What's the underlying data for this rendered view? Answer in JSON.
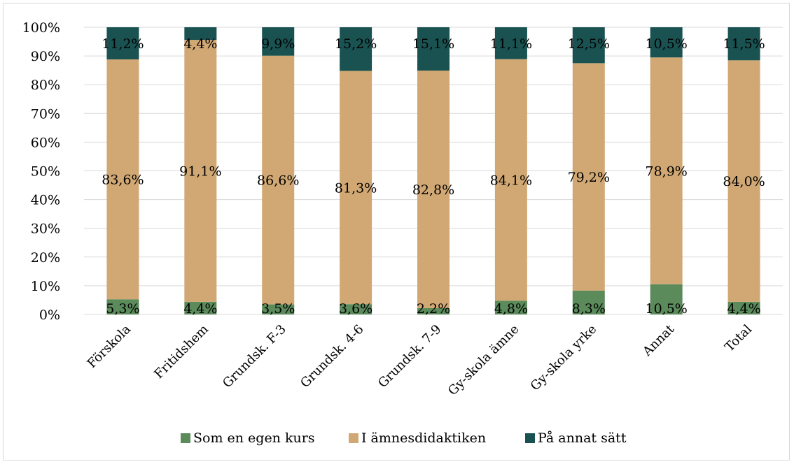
{
  "chart_data": {
    "type": "bar",
    "stacked": true,
    "percent_stacked": true,
    "categories": [
      "Förskola",
      "Fritidshem",
      "Grundsk. F-3",
      "Grundsk. 4-6",
      "Grundsk. 7-9",
      "Gy-skola ämne",
      "Gy-skola yrke",
      "Annat",
      "Total"
    ],
    "series": [
      {
        "name": "Som en egen kurs",
        "color": "#5b8a5b",
        "values": [
          5.3,
          4.4,
          3.5,
          3.6,
          2.2,
          4.8,
          8.3,
          10.5,
          4.4
        ],
        "labels": [
          "5,3%",
          "4,4%",
          "3,5%",
          "3,6%",
          "2,2%",
          "4,8%",
          "8,3%",
          "10,5%",
          "4,4%"
        ]
      },
      {
        "name": "I ämnesdidaktiken",
        "color": "#d1a873",
        "values": [
          83.6,
          91.1,
          86.6,
          81.3,
          82.8,
          84.1,
          79.2,
          78.9,
          84.0
        ],
        "labels": [
          "83,6%",
          "91,1%",
          "86,6%",
          "81,3%",
          "82,8%",
          "84,1%",
          "79,2%",
          "78,9%",
          "84,0%"
        ]
      },
      {
        "name": "På annat sätt",
        "color": "#1a5252",
        "values": [
          11.2,
          4.4,
          9.9,
          15.2,
          15.1,
          11.1,
          12.5,
          10.5,
          11.5
        ],
        "labels": [
          "11,2%",
          "4,4%",
          "9,9%",
          "15,2%",
          "15,1%",
          "11,1%",
          "12,5%",
          "10,5%",
          "11,5%"
        ]
      }
    ],
    "y_ticks": [
      "0%",
      "10%",
      "20%",
      "30%",
      "40%",
      "50%",
      "60%",
      "70%",
      "80%",
      "90%",
      "100%"
    ],
    "ylim": [
      0,
      100
    ],
    "grid": true,
    "legend_position": "bottom"
  }
}
